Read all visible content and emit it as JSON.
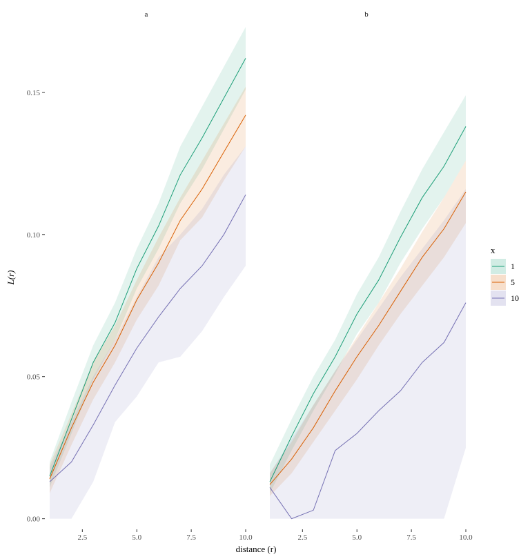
{
  "chart_data": {
    "type": "line",
    "xlabel": "distance (r)",
    "ylabel": "L(r)",
    "xlim": [
      1,
      10
    ],
    "ylim": [
      -0.003,
      0.174
    ],
    "xticks": [
      2.5,
      5.0,
      7.5,
      10.0
    ],
    "xtick_labels": [
      "2.5",
      "5.0",
      "7.5",
      "10.0"
    ],
    "yticks": [
      0.0,
      0.05,
      0.1,
      0.15
    ],
    "ytick_labels": [
      "0.00",
      "0.05",
      "0.10",
      "0.15"
    ],
    "grid": false,
    "legend": {
      "title": "x",
      "position": "right"
    },
    "x": [
      1,
      2,
      3,
      4,
      5,
      6,
      7,
      8,
      9,
      10
    ],
    "panels": [
      {
        "label": "a",
        "series": [
          {
            "name": "1",
            "color": "#1b9e77",
            "values": [
              0.015,
              0.035,
              0.055,
              0.069,
              0.088,
              0.103,
              0.121,
              0.134,
              0.148,
              0.162
            ],
            "lower": [
              0.011,
              0.03,
              0.049,
              0.063,
              0.081,
              0.095,
              0.111,
              0.123,
              0.137,
              0.151
            ],
            "upper": [
              0.02,
              0.041,
              0.061,
              0.076,
              0.095,
              0.111,
              0.131,
              0.145,
              0.159,
              0.173
            ]
          },
          {
            "name": "5",
            "color": "#d95f02",
            "values": [
              0.014,
              0.032,
              0.048,
              0.061,
              0.077,
              0.09,
              0.105,
              0.116,
              0.129,
              0.142
            ],
            "lower": [
              0.009,
              0.026,
              0.042,
              0.055,
              0.07,
              0.082,
              0.098,
              0.106,
              0.119,
              0.131
            ],
            "upper": [
              0.019,
              0.037,
              0.055,
              0.068,
              0.084,
              0.099,
              0.113,
              0.126,
              0.139,
              0.152
            ]
          },
          {
            "name": "10",
            "color": "#7570b3",
            "values": [
              0.013,
              0.02,
              0.033,
              0.047,
              0.06,
              0.071,
              0.081,
              0.089,
              0.1,
              0.114
            ],
            "lower": [
              0.0,
              0.0,
              0.013,
              0.034,
              0.043,
              0.055,
              0.057,
              0.066,
              0.078,
              0.089
            ],
            "upper": [
              0.018,
              0.034,
              0.05,
              0.063,
              0.078,
              0.092,
              0.1,
              0.109,
              0.121,
              0.131
            ]
          }
        ]
      },
      {
        "label": "b",
        "series": [
          {
            "name": "1",
            "color": "#1b9e77",
            "values": [
              0.013,
              0.029,
              0.044,
              0.057,
              0.072,
              0.084,
              0.099,
              0.113,
              0.124,
              0.138
            ],
            "lower": [
              0.009,
              0.024,
              0.038,
              0.051,
              0.065,
              0.076,
              0.09,
              0.102,
              0.113,
              0.126
            ],
            "upper": [
              0.019,
              0.035,
              0.05,
              0.063,
              0.079,
              0.092,
              0.108,
              0.123,
              0.136,
              0.149
            ]
          },
          {
            "name": "5",
            "color": "#d95f02",
            "values": [
              0.012,
              0.021,
              0.032,
              0.045,
              0.057,
              0.068,
              0.08,
              0.092,
              0.102,
              0.115
            ],
            "lower": [
              0.008,
              0.016,
              0.027,
              0.038,
              0.049,
              0.061,
              0.072,
              0.082,
              0.092,
              0.104
            ],
            "upper": [
              0.016,
              0.027,
              0.04,
              0.052,
              0.064,
              0.076,
              0.088,
              0.101,
              0.113,
              0.126
            ]
          },
          {
            "name": "10",
            "color": "#7570b3",
            "values": [
              0.011,
              0.0,
              0.003,
              0.024,
              0.03,
              0.038,
              0.045,
              0.055,
              0.062,
              0.076
            ],
            "lower": [
              0.0,
              0.0,
              0.0,
              0.0,
              0.0,
              0.0,
              0.0,
              0.0,
              0.0,
              0.025
            ],
            "upper": [
              0.016,
              0.028,
              0.04,
              0.052,
              0.063,
              0.074,
              0.085,
              0.095,
              0.105,
              0.116
            ]
          }
        ]
      }
    ]
  },
  "legend_fill_opacity": 0.2
}
